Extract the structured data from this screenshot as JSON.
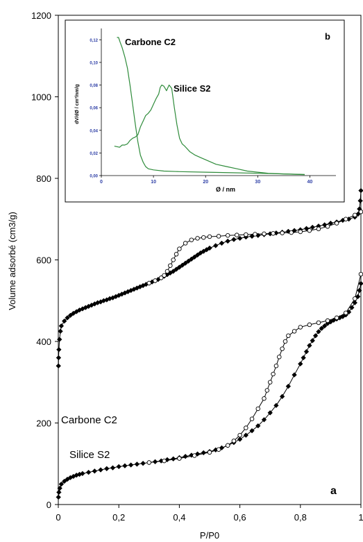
{
  "chart_data": [
    {
      "type": "line",
      "panel_label": "a",
      "xlabel": "P/P0",
      "ylabel": "Volume adsorbé (cm3/g)",
      "xlim": [
        0,
        1
      ],
      "ylim": [
        0,
        1200
      ],
      "x_ticks": [
        0,
        0.2,
        0.4,
        0.6,
        0.8,
        1
      ],
      "x_tick_labels": [
        "0",
        "0,2",
        "0,4",
        "0,6",
        "0,8",
        "1"
      ],
      "y_ticks": [
        0,
        200,
        400,
        600,
        800,
        1000,
        1200
      ],
      "y_tick_labels": [
        "0",
        "200",
        "400",
        "600",
        "800",
        "1000",
        "1200"
      ],
      "grid": false,
      "annotations": [
        {
          "text": "Carbone C2",
          "x": 0.01,
          "y": 605
        },
        {
          "text": "Silice S2",
          "x": 0.04,
          "y": 115
        }
      ],
      "series": [
        {
          "label": "Carbone C2 adsorption",
          "marker": "filled-diamond",
          "color": "#000000",
          "x": [
            0.0005,
            0.001,
            0.002,
            0.004,
            0.007,
            0.01,
            0.02,
            0.03,
            0.04,
            0.05,
            0.06,
            0.07,
            0.08,
            0.09,
            0.1,
            0.11,
            0.12,
            0.13,
            0.14,
            0.15,
            0.16,
            0.17,
            0.18,
            0.19,
            0.2,
            0.21,
            0.22,
            0.23,
            0.24,
            0.25,
            0.26,
            0.27,
            0.28,
            0.29,
            0.3,
            0.31,
            0.32,
            0.33,
            0.34,
            0.35,
            0.36,
            0.37,
            0.38,
            0.39,
            0.4,
            0.41,
            0.42,
            0.43,
            0.44,
            0.45,
            0.46,
            0.47,
            0.48,
            0.49,
            0.5,
            0.52,
            0.54,
            0.56,
            0.58,
            0.6,
            0.62,
            0.64,
            0.66,
            0.68,
            0.7,
            0.72,
            0.74,
            0.76,
            0.78,
            0.8,
            0.82,
            0.84,
            0.86,
            0.88,
            0.9,
            0.92,
            0.94,
            0.96,
            0.98,
            0.99,
            0.995,
            0.998,
            1.0
          ],
          "y": [
            340,
            360,
            380,
            405,
            425,
            438,
            450,
            458,
            464,
            469,
            473,
            477,
            480,
            483,
            486,
            489,
            492,
            495,
            497,
            500,
            502,
            505,
            507,
            510,
            513,
            516,
            519,
            522,
            525,
            528,
            531,
            534,
            537,
            540,
            543,
            546,
            549,
            552,
            556,
            560,
            564,
            568,
            572,
            577,
            582,
            587,
            592,
            597,
            602,
            607,
            612,
            617,
            621,
            625,
            629,
            635,
            641,
            646,
            650,
            653,
            656,
            658,
            660,
            662,
            664,
            666,
            668,
            670,
            672,
            674,
            677,
            680,
            683,
            686,
            690,
            693,
            697,
            700,
            705,
            712,
            725,
            745,
            770
          ]
        },
        {
          "label": "Carbone C2 desorption",
          "marker": "open-circle",
          "color": "#000000",
          "x": [
            0.3,
            0.32,
            0.34,
            0.35,
            0.36,
            0.37,
            0.38,
            0.39,
            0.4,
            0.42,
            0.44,
            0.46,
            0.48,
            0.5,
            0.53,
            0.56,
            0.59,
            0.62,
            0.65,
            0.68,
            0.71,
            0.74,
            0.77,
            0.8,
            0.83,
            0.86,
            0.89,
            0.92,
            0.95,
            0.98,
            1.0
          ],
          "y": [
            543,
            549,
            556,
            562,
            572,
            586,
            600,
            614,
            627,
            641,
            649,
            653,
            655,
            657,
            658,
            660,
            661,
            662,
            663,
            664,
            665,
            666,
            667,
            669,
            672,
            676,
            682,
            690,
            700,
            710,
            718
          ]
        },
        {
          "label": "Silice S2 adsorption",
          "marker": "filled-diamond",
          "color": "#000000",
          "x": [
            0.0005,
            0.002,
            0.005,
            0.01,
            0.02,
            0.03,
            0.04,
            0.05,
            0.06,
            0.07,
            0.08,
            0.1,
            0.12,
            0.14,
            0.16,
            0.18,
            0.2,
            0.22,
            0.24,
            0.26,
            0.28,
            0.3,
            0.32,
            0.34,
            0.36,
            0.38,
            0.4,
            0.42,
            0.44,
            0.46,
            0.48,
            0.5,
            0.52,
            0.54,
            0.56,
            0.58,
            0.6,
            0.62,
            0.64,
            0.66,
            0.68,
            0.7,
            0.72,
            0.74,
            0.76,
            0.78,
            0.8,
            0.81,
            0.82,
            0.83,
            0.84,
            0.85,
            0.86,
            0.87,
            0.88,
            0.89,
            0.9,
            0.91,
            0.92,
            0.93,
            0.94,
            0.95,
            0.96,
            0.97,
            0.98,
            0.99,
            0.995,
            1.0
          ],
          "y": [
            18,
            30,
            40,
            50,
            57,
            62,
            66,
            69,
            72,
            74,
            76,
            79,
            82,
            85,
            88,
            90,
            93,
            95,
            97,
            99,
            101,
            103,
            105,
            107,
            110,
            112,
            115,
            118,
            121,
            124,
            127,
            130,
            134,
            139,
            145,
            152,
            160,
            170,
            181,
            193,
            208,
            225,
            243,
            265,
            290,
            318,
            345,
            360,
            375,
            390,
            402,
            414,
            424,
            432,
            438,
            444,
            448,
            452,
            455,
            458,
            461,
            465,
            472,
            483,
            495,
            510,
            525,
            542
          ]
        },
        {
          "label": "Silice S2 desorption",
          "marker": "open-circle",
          "color": "#000000",
          "x": [
            0.3,
            0.35,
            0.4,
            0.45,
            0.5,
            0.53,
            0.56,
            0.58,
            0.6,
            0.62,
            0.64,
            0.66,
            0.68,
            0.69,
            0.7,
            0.71,
            0.72,
            0.73,
            0.74,
            0.75,
            0.76,
            0.78,
            0.8,
            0.83,
            0.86,
            0.89,
            0.92,
            0.95,
            0.98,
            1.0
          ],
          "y": [
            103,
            107,
            113,
            120,
            128,
            135,
            145,
            156,
            170,
            188,
            210,
            235,
            260,
            280,
            300,
            320,
            340,
            362,
            382,
            400,
            414,
            425,
            435,
            441,
            446,
            451,
            458,
            470,
            505,
            565
          ]
        }
      ]
    },
    {
      "type": "line",
      "panel_label": "b",
      "xlabel": "Ø / nm",
      "ylabel": "dV/dØ / cm³/nm/g",
      "xlim": [
        0,
        45
      ],
      "ylim": [
        0,
        0.13
      ],
      "x_ticks": [
        0,
        10,
        20,
        30,
        40
      ],
      "x_tick_labels": [
        "0",
        "10",
        "20",
        "30",
        "40"
      ],
      "y_ticks": [
        0,
        0.02,
        0.04,
        0.06,
        0.08,
        0.1,
        0.12
      ],
      "y_tick_labels": [
        "0,00",
        "0,02",
        "0,04",
        "0,06",
        "0,08",
        "0,10",
        "0,12"
      ],
      "grid": false,
      "tick_label_color": "#2d3ea6",
      "annotations": [
        {
          "text": "Carbone C2",
          "x": 5.3,
          "y": 0.121
        },
        {
          "text": "Silice S2",
          "x": 15,
          "y": 0.077
        }
      ],
      "series": [
        {
          "label": "Carbone C2",
          "color": "#2e8b3a",
          "x": [
            3.0,
            3.3,
            3.6,
            4.0,
            4.5,
            5.0,
            5.5,
            6.0,
            6.5,
            7.0,
            7.5,
            8.0,
            8.5,
            9.0,
            10,
            12,
            15,
            20,
            25,
            30,
            35,
            39
          ],
          "y": [
            0.122,
            0.122,
            0.118,
            0.113,
            0.105,
            0.095,
            0.08,
            0.063,
            0.046,
            0.03,
            0.018,
            0.012,
            0.008,
            0.006,
            0.005,
            0.004,
            0.0035,
            0.003,
            0.0025,
            0.002,
            0.0015,
            0.001
          ]
        },
        {
          "label": "Silice S2",
          "color": "#2e8b3a",
          "x": [
            2.5,
            3.5,
            4.0,
            4.5,
            5.0,
            5.5,
            6.0,
            6.5,
            7.0,
            7.5,
            8.0,
            8.5,
            9.0,
            9.5,
            10.0,
            10.5,
            11.0,
            11.3,
            11.6,
            12.0,
            12.5,
            13.0,
            13.5,
            14.0,
            14.5,
            15.0,
            15.5,
            16.0,
            17.0,
            18.0,
            19.0,
            20.0,
            22.0,
            24.0,
            26.0,
            28.0,
            30.0,
            32.0,
            35.0,
            38.0,
            39.0
          ],
          "y": [
            0.026,
            0.025,
            0.027,
            0.027,
            0.028,
            0.031,
            0.033,
            0.034,
            0.036,
            0.043,
            0.048,
            0.053,
            0.055,
            0.058,
            0.063,
            0.068,
            0.072,
            0.078,
            0.08,
            0.079,
            0.075,
            0.08,
            0.077,
            0.06,
            0.045,
            0.033,
            0.028,
            0.026,
            0.021,
            0.018,
            0.016,
            0.014,
            0.01,
            0.008,
            0.006,
            0.004,
            0.003,
            0.002,
            0.0015,
            0.001,
            0.0008
          ]
        }
      ]
    }
  ]
}
